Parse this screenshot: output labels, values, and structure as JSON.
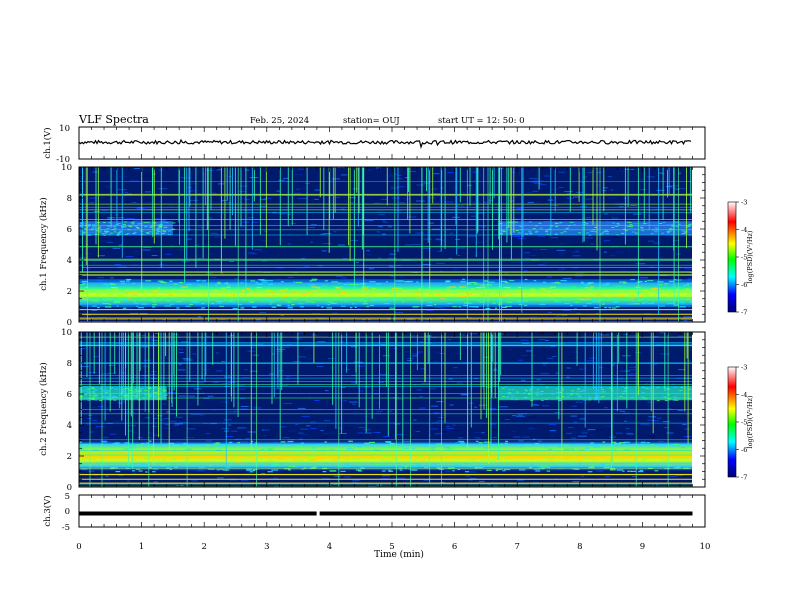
{
  "header": {
    "title": "VLF Spectra",
    "date": "Feb. 25, 2024",
    "station": "station= OUJ",
    "start": "start UT =  12: 50: 0"
  },
  "chart_data": [
    {
      "type": "line",
      "panel": "ch1-waveform",
      "ylabel": "ch.1(V)",
      "ylim": [
        -10,
        10
      ],
      "y_tick_labels": [
        "10",
        "-10"
      ],
      "xlim": [
        0,
        9.8
      ],
      "approx_level_V": 0.5,
      "color": "#000000"
    },
    {
      "type": "heatmap",
      "panel": "ch1-spectrogram",
      "ylabel": "ch.1 Frequency (kHz)",
      "ylim": [
        0,
        10
      ],
      "y_tick_labels": [
        "0",
        "2",
        "4",
        "6",
        "8",
        "10"
      ],
      "xlim": [
        0,
        9.8
      ],
      "features": {
        "strong_band_khz": [
          0.9,
          2.8
        ],
        "band_peak_khz": 1.9,
        "upper_band_khz": [
          5.6,
          6.5
        ],
        "upper_band_time_min": [
          [
            0,
            1.5
          ],
          [
            6.7,
            9.8
          ]
        ]
      },
      "colorbar": {
        "label": "log(PSD)(V²/Hz)",
        "ticks": [
          "-3",
          "-4",
          "-5",
          "-6",
          "-7"
        ],
        "range": [
          -7,
          -3
        ]
      }
    },
    {
      "type": "heatmap",
      "panel": "ch2-spectrogram",
      "ylabel": "ch.2 Frequency (kHz)",
      "ylim": [
        0,
        10
      ],
      "y_tick_labels": [
        "0",
        "2",
        "4",
        "6",
        "8",
        "10"
      ],
      "xlim": [
        0,
        9.8
      ],
      "features": {
        "strong_band_khz": [
          1.0,
          3.0
        ],
        "band_peak_khz": 2.0,
        "upper_band_khz": [
          5.6,
          6.5
        ],
        "upper_band_time_min": [
          [
            0,
            1.4
          ],
          [
            6.7,
            9.8
          ]
        ]
      },
      "colorbar": {
        "label": "log(PSD)(V²/Hz)",
        "ticks": [
          "-3",
          "-4",
          "-5",
          "-6",
          "-7"
        ],
        "range": [
          -7,
          -3
        ]
      }
    },
    {
      "type": "line",
      "panel": "ch3-waveform",
      "ylabel": "ch.3(V)",
      "ylim": [
        -5,
        5
      ],
      "y_tick_labels": [
        "5",
        "0",
        "-5"
      ],
      "xlim": [
        0,
        9.8
      ],
      "approx_level_V": -0.8,
      "gap_at_min": 3.82,
      "xlabel": "Time (min)",
      "x_tick_labels": [
        "0",
        "1",
        "2",
        "3",
        "4",
        "5",
        "6",
        "7",
        "8",
        "9",
        "10"
      ],
      "x_range_axis": [
        0,
        10
      ]
    }
  ],
  "colors": {
    "colormap": [
      "#00007a",
      "#0000ff",
      "#00ffff",
      "#00ff00",
      "#ffff00",
      "#ff0000",
      "#ffffff"
    ],
    "spectrogram_background": "#001a6e"
  }
}
